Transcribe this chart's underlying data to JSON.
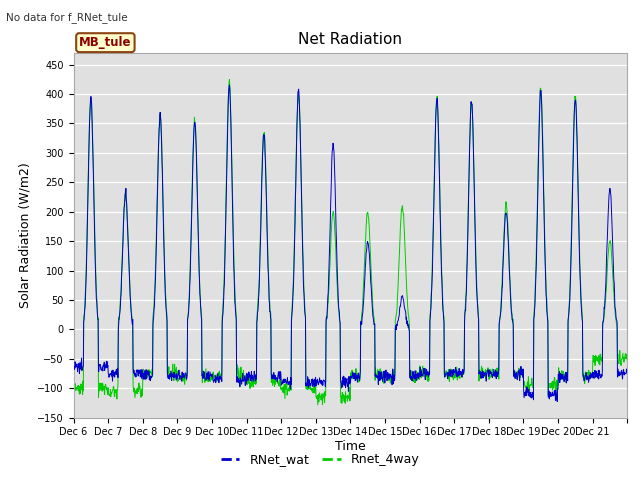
{
  "title": "Net Radiation",
  "xlabel": "Time",
  "ylabel": "Solar Radiation (W/m2)",
  "ylim": [
    -150,
    470
  ],
  "yticks": [
    -150,
    -100,
    -50,
    0,
    50,
    100,
    150,
    200,
    250,
    300,
    350,
    400,
    450
  ],
  "top_left_text": "No data for f_RNet_tule",
  "legend_label1": "RNet_wat",
  "legend_label2": "Rnet_4way",
  "legend_color1": "#0000cd",
  "legend_color2": "#00cc00",
  "annotation_box_text": "MB_tule",
  "annotation_box_facecolor": "#ffffcc",
  "annotation_box_edgecolor": "#8b4513",
  "annotation_box_textcolor": "#8b0000",
  "plot_bgcolor": "#e0e0e0",
  "fig_bgcolor": "#ffffff",
  "n_days": 16,
  "start_day": 6,
  "blue_peaks": [
    395,
    230,
    365,
    355,
    415,
    330,
    405,
    315,
    150,
    55,
    390,
    390,
    200,
    405,
    390,
    240
  ],
  "green_peaks": [
    395,
    230,
    365,
    355,
    420,
    335,
    400,
    200,
    200,
    210,
    390,
    385,
    210,
    410,
    395,
    150
  ],
  "blue_nights": [
    -65,
    -75,
    -80,
    -80,
    -85,
    -80,
    -90,
    -90,
    -80,
    -80,
    -75,
    -75,
    -75,
    -110,
    -80,
    -75
  ],
  "green_nights": [
    -100,
    -105,
    -75,
    -80,
    -80,
    -90,
    -100,
    -115,
    -80,
    -80,
    -75,
    -75,
    -75,
    -95,
    -80,
    -50
  ]
}
